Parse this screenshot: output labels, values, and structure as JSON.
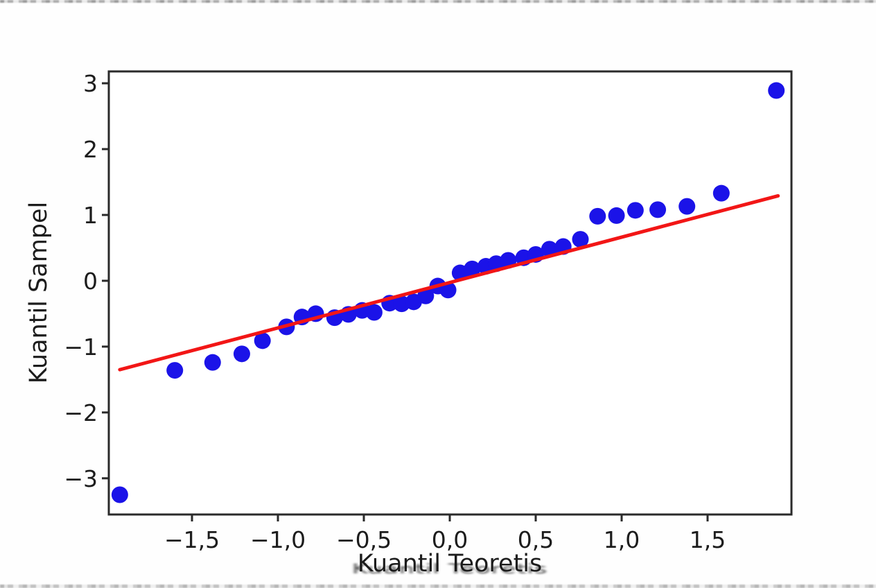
{
  "chart_data": {
    "type": "scatter",
    "title": "",
    "xlabel": "Kuantil Teoretis",
    "ylabel": "Kuantil Sampel",
    "xlim": [
      -1.984,
      1.988
    ],
    "ylim": [
      -3.55,
      3.18
    ],
    "grid": false,
    "legend": "none",
    "x_ticks": [
      {
        "value": -1.5,
        "label": "−1,5"
      },
      {
        "value": -1.0,
        "label": "−1,0"
      },
      {
        "value": -0.5,
        "label": "−0,5"
      },
      {
        "value": 0.0,
        "label": "0,0"
      },
      {
        "value": 0.5,
        "label": "0,5"
      },
      {
        "value": 1.0,
        "label": "1,0"
      },
      {
        "value": 1.5,
        "label": "1,5"
      }
    ],
    "y_ticks": [
      {
        "value": 3,
        "label": "3"
      },
      {
        "value": 2,
        "label": "2"
      },
      {
        "value": 1,
        "label": "1"
      },
      {
        "value": 0,
        "label": "0"
      },
      {
        "value": -1,
        "label": "−1"
      },
      {
        "value": -2,
        "label": "−2"
      },
      {
        "value": -3,
        "label": "−3"
      }
    ],
    "series": [
      {
        "name": "sample-quantile-points",
        "kind": "scatter",
        "color": "#1b13e8",
        "marker_radius": 12,
        "points": [
          [
            -1.92,
            -3.25
          ],
          [
            -1.6,
            -1.36
          ],
          [
            -1.38,
            -1.24
          ],
          [
            -1.21,
            -1.11
          ],
          [
            -1.09,
            -0.91
          ],
          [
            -0.95,
            -0.7
          ],
          [
            -0.86,
            -0.55
          ],
          [
            -0.78,
            -0.5
          ],
          [
            -0.67,
            -0.56
          ],
          [
            -0.59,
            -0.51
          ],
          [
            -0.51,
            -0.45
          ],
          [
            -0.44,
            -0.48
          ],
          [
            -0.35,
            -0.34
          ],
          [
            -0.28,
            -0.35
          ],
          [
            -0.21,
            -0.32
          ],
          [
            -0.14,
            -0.23
          ],
          [
            -0.07,
            -0.08
          ],
          [
            -0.01,
            -0.14
          ],
          [
            0.06,
            0.12
          ],
          [
            0.13,
            0.18
          ],
          [
            0.21,
            0.22
          ],
          [
            0.27,
            0.26
          ],
          [
            0.34,
            0.31
          ],
          [
            0.43,
            0.35
          ],
          [
            0.5,
            0.4
          ],
          [
            0.58,
            0.48
          ],
          [
            0.66,
            0.52
          ],
          [
            0.76,
            0.63
          ],
          [
            0.86,
            0.98
          ],
          [
            0.97,
            0.99
          ],
          [
            1.08,
            1.07
          ],
          [
            1.21,
            1.08
          ],
          [
            1.38,
            1.13
          ],
          [
            1.58,
            1.33
          ],
          [
            1.9,
            2.89
          ]
        ]
      },
      {
        "name": "reference-line",
        "kind": "line",
        "color": "#f21616",
        "width": 5,
        "points": [
          [
            -1.92,
            -1.35
          ],
          [
            1.91,
            1.29
          ]
        ]
      }
    ],
    "colors": {
      "point": "#1b13e8",
      "line": "#f21616",
      "spine": "#2a2a2a",
      "tick_text": "#1c1c1c"
    }
  }
}
